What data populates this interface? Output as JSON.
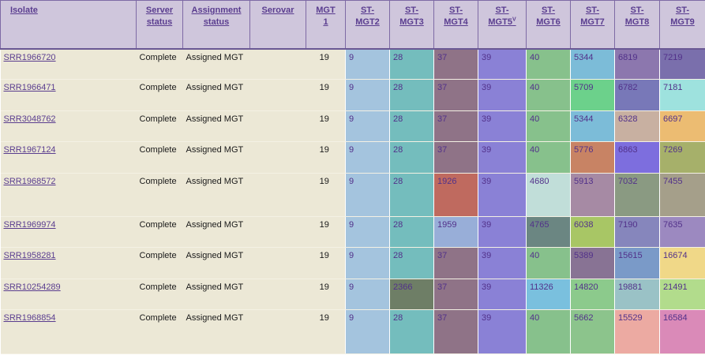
{
  "headers": {
    "isolate": "Isolate",
    "server_status": [
      "Server",
      "status"
    ],
    "assignment_status": [
      "Assignment",
      "status"
    ],
    "serovar": "Serovar",
    "mgt1": [
      "MGT",
      "1"
    ],
    "st_mgt2": [
      "ST-",
      "MGT2"
    ],
    "st_mgt3": [
      "ST-",
      "MGT3"
    ],
    "st_mgt4": [
      "ST-",
      "MGT4"
    ],
    "st_mgt5": [
      "ST-",
      "MGT5"
    ],
    "st_mgt5_sup": "V",
    "st_mgt6": [
      "ST-",
      "MGT6"
    ],
    "st_mgt7": [
      "ST-",
      "MGT7"
    ],
    "st_mgt8": [
      "ST-",
      "MGT8"
    ],
    "st_mgt9": [
      "ST-",
      "MGT9"
    ]
  },
  "rows": [
    {
      "isolate": "SRR1966720",
      "server_status": "Complete",
      "assignment_status": "Assigned MGT",
      "serovar": "",
      "mgt1": "19",
      "st": [
        "9",
        "28",
        "37",
        "39",
        "40",
        "5344",
        "6819",
        "7219"
      ],
      "colors": [
        "#a4c4de",
        "#74bdbd",
        "#8f7387",
        "#8a81d6",
        "#87c18c",
        "#7cbcd8",
        "#8c77ae",
        "#7a6fac"
      ]
    },
    {
      "isolate": "SRR1966471",
      "server_status": "Complete",
      "assignment_status": "Assigned MGT",
      "serovar": "",
      "mgt1": "19",
      "st": [
        "9",
        "28",
        "37",
        "39",
        "40",
        "5709",
        "6782",
        "7181"
      ],
      "colors": [
        "#a4c4de",
        "#74bdbd",
        "#8f7387",
        "#8a81d6",
        "#87c18c",
        "#6cd18b",
        "#7878b8",
        "#9ee2de"
      ]
    },
    {
      "isolate": "SRR3048762",
      "server_status": "Complete",
      "assignment_status": "Assigned MGT",
      "serovar": "",
      "mgt1": "19",
      "st": [
        "9",
        "28",
        "37",
        "39",
        "40",
        "5344",
        "6328",
        "6697"
      ],
      "colors": [
        "#a4c4de",
        "#74bdbd",
        "#8f7387",
        "#8a81d6",
        "#87c18c",
        "#7cbcd8",
        "#c8b0a1",
        "#ecbc72"
      ]
    },
    {
      "isolate": "SRR1967124",
      "server_status": "Complete",
      "assignment_status": "Assigned MGT",
      "serovar": "",
      "mgt1": "19",
      "st": [
        "9",
        "28",
        "37",
        "39",
        "40",
        "5776",
        "6863",
        "7269"
      ],
      "colors": [
        "#a4c4de",
        "#74bdbd",
        "#8f7387",
        "#8a81d6",
        "#87c18c",
        "#c88364",
        "#7d6ede",
        "#a6b06a"
      ]
    },
    {
      "isolate": "SRR1968572",
      "server_status": "Complete",
      "assignment_status": "Assigned MGT",
      "serovar": "",
      "mgt1": "19",
      "st": [
        "9",
        "28",
        "1926",
        "39",
        "4680",
        "5913",
        "7032",
        "7455"
      ],
      "colors": [
        "#a4c4de",
        "#74bdbd",
        "#bf6a5f",
        "#8a81d6",
        "#c1ded9",
        "#a68aa4",
        "#8a9a82",
        "#a59f8a"
      ]
    },
    {
      "isolate": "SRR1969974",
      "server_status": "Complete",
      "assignment_status": "Assigned MGT",
      "serovar": "",
      "mgt1": "19",
      "st": [
        "9",
        "28",
        "1959",
        "39",
        "4765",
        "6038",
        "7190",
        "7635"
      ],
      "colors": [
        "#a4c4de",
        "#74bdbd",
        "#98aed8",
        "#8a81d6",
        "#6b8682",
        "#a8c665",
        "#8686bc",
        "#9c89c0"
      ]
    },
    {
      "isolate": "SRR1958281",
      "server_status": "Complete",
      "assignment_status": "Assigned MGT",
      "serovar": "",
      "mgt1": "19",
      "st": [
        "9",
        "28",
        "37",
        "39",
        "40",
        "5389",
        "15615",
        "16674"
      ],
      "colors": [
        "#a4c4de",
        "#74bdbd",
        "#8f7387",
        "#8a81d6",
        "#87c18c",
        "#887394",
        "#7a9ac8",
        "#f0d888"
      ]
    },
    {
      "isolate": "SRR10254289",
      "server_status": "Complete",
      "assignment_status": "Assigned MGT",
      "serovar": "",
      "mgt1": "19",
      "st": [
        "9",
        "2366",
        "37",
        "39",
        "11326",
        "14820",
        "19881",
        "21491"
      ],
      "colors": [
        "#a4c4de",
        "#6e7e66",
        "#8f7387",
        "#8a81d6",
        "#7ac0de",
        "#8cca8c",
        "#9ac2c6",
        "#b2dc8c"
      ]
    },
    {
      "isolate": "SRR1968854",
      "server_status": "Complete",
      "assignment_status": "Assigned MGT",
      "serovar": "",
      "mgt1": "19",
      "st": [
        "9",
        "28",
        "37",
        "39",
        "40",
        "5662",
        "15529",
        "16584"
      ],
      "colors": [
        "#a4c4de",
        "#74bdbd",
        "#8f7387",
        "#8a81d6",
        "#87c18c",
        "#8cc48c",
        "#ecaaa2",
        "#da8ab8"
      ]
    }
  ]
}
